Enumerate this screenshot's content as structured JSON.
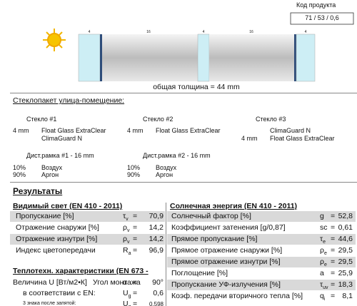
{
  "header": {
    "product_code_label": "Код продукта",
    "product_code": "71 / 53 / 0,6"
  },
  "diagram": {
    "pane_labels": [
      "4",
      "16",
      "4",
      "16",
      "4"
    ],
    "total": "общая толщина = 44 mm"
  },
  "config_title": "Стеклопакет улица-помещение:",
  "glasses": [
    {
      "title": "Стекло #1",
      "thickness": "4 mm",
      "layers": [
        "Float Glass ExtraClear",
        "ClimaGuard N"
      ]
    },
    {
      "title": "Стекло #2",
      "thickness": "4 mm",
      "layers": [
        "Float Glass ExtraClear"
      ]
    },
    {
      "title": "Стекло #3",
      "thickness": "4 mm",
      "layers": [
        "ClimaGuard N",
        "Float Glass ExtraClear"
      ]
    }
  ],
  "spacers": [
    {
      "title": "Дист.рамка #1 - 16 mm",
      "gases": [
        {
          "percent": "10%",
          "name": "Воздух"
        },
        {
          "percent": "90%",
          "name": "Аргон"
        }
      ]
    },
    {
      "title": "Дист.рамка #2 - 16 mm",
      "gases": [
        {
          "percent": "10%",
          "name": "Воздух"
        },
        {
          "percent": "90%",
          "name": "Аргон"
        }
      ]
    }
  ],
  "results_title": "Результаты",
  "equals": "=",
  "visible": {
    "title": "Видимый свет (EN 410 - 2011)",
    "rows": [
      {
        "label": "Пропускание [%]",
        "symbol": "τ",
        "sub": "v",
        "value": "70,9"
      },
      {
        "label": "Отражение снаружи [%]",
        "symbol": "ρ",
        "sub": "v",
        "value": "14,2"
      },
      {
        "label": "Отражение изнутри [%]",
        "symbol": "ρ",
        "sub": "v",
        "value": "14,2"
      },
      {
        "label": "Индекс цветопередачи",
        "symbol": "R",
        "sub": "a",
        "value": "96,9"
      }
    ]
  },
  "thermal": {
    "title": "Теплотехн. характеристики (EN 673 -",
    "u_label": "Величина U [Вт/м2•К]",
    "rows": [
      {
        "label": "Угол монтажа",
        "symbol": "α",
        "value": "90°"
      },
      {
        "label": "в соответствии с EN:",
        "symbol": "U",
        "sub": "g",
        "value": "0,6"
      },
      {
        "label": "3 знака после запятой:",
        "symbol": "U",
        "sub": "g",
        "value": "0,598"
      }
    ]
  },
  "solar": {
    "title": "Солнечная энергия (EN 410 - 2011)",
    "rows": [
      {
        "label": "Солнечный фактор [%]",
        "symbol": "g",
        "value": "52,8"
      },
      {
        "label": "Коэффициент затенения [g/0,87]",
        "symbol": "sc",
        "value": "0,61"
      },
      {
        "label": "Прямое пропускание [%]",
        "symbol": "τ",
        "sub": "e",
        "value": "44,6"
      },
      {
        "label": "Прямое отражение снаружи [%]",
        "symbol": "ρ",
        "sub": "e",
        "value": "29,5"
      },
      {
        "label": "Прямое отражение изнутри [%]",
        "symbol": "ρ",
        "sub": "e",
        "value": "29,5"
      },
      {
        "label": "Поглощение [%]",
        "symbol": "a",
        "value": "25,9"
      },
      {
        "label": "Пропускание УФ-излучения [%]",
        "symbol": "τ",
        "sub": "uv",
        "value": "18,3"
      },
      {
        "label": "Коэф. передачи вторичного тепла [%]",
        "symbol": "q",
        "sub": "i",
        "value": "8,1"
      }
    ]
  }
}
